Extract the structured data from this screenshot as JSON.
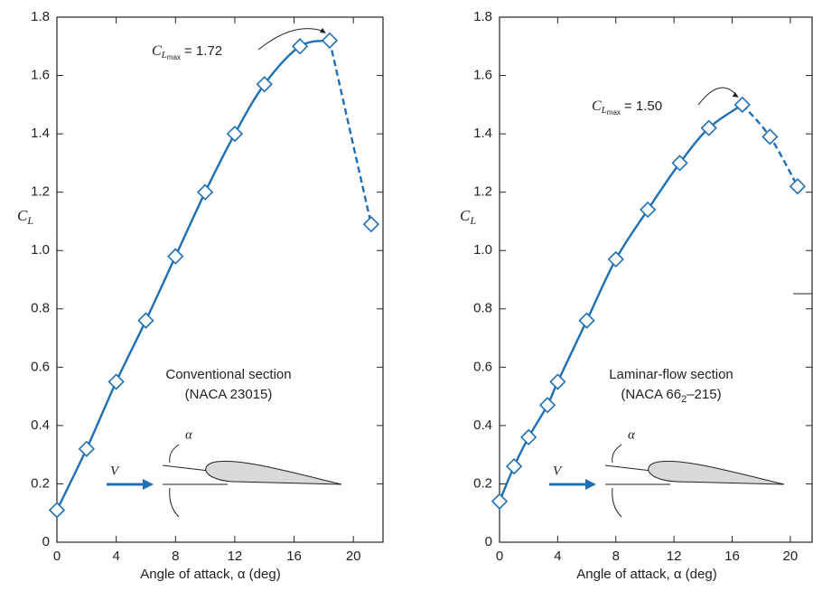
{
  "chart_data": [
    {
      "type": "line",
      "xlabel": "Angle of attack, α (deg)",
      "ylabel": {
        "symbol": "C",
        "sub": "L"
      },
      "annotation": {
        "symbol": "C",
        "sub": "L",
        "subsub": "max",
        "text": "= 1.72"
      },
      "section": [
        "Conventional section",
        "(NACA 23015)"
      ],
      "diagram": {
        "velocity": "V",
        "angle": "α"
      },
      "x": [
        0,
        2,
        4,
        6,
        8,
        10,
        12,
        14,
        16.4,
        18.4,
        21.2
      ],
      "series": [
        {
          "color": "#1f6fb4",
          "values": [
            0.11,
            0.32,
            0.55,
            0.76,
            0.98,
            1.2,
            1.4,
            1.57,
            1.7,
            1.72,
            1.09
          ]
        }
      ],
      "dashed_from": 9,
      "xlim": [
        0,
        22
      ],
      "ylim": [
        0,
        1.8
      ],
      "xticks": [
        0,
        4,
        8,
        12,
        16,
        20
      ],
      "yticks": [
        0,
        0.2,
        0.4,
        0.6,
        0.8,
        {
          "value": 1,
          "label": "1.0"
        },
        1.2,
        1.4,
        1.6,
        1.8
      ]
    },
    {
      "type": "line",
      "xlabel": "Angle of attack, α (deg)",
      "ylabel": {
        "symbol": "C",
        "sub": "L"
      },
      "annotation": {
        "symbol": "C",
        "sub": "L",
        "subsub": "max",
        "text": "= 1.50"
      },
      "section": [
        "Laminar-flow section",
        {
          "main": "(NACA 66",
          "sub": "2",
          "rest": "–215)"
        }
      ],
      "diagram": {
        "velocity": "V",
        "angle": "α"
      },
      "x": [
        0,
        1,
        2,
        3.3,
        4,
        6,
        8,
        10.2,
        12.4,
        14.4,
        16.7,
        18.6,
        20.5
      ],
      "series": [
        {
          "color": "#1f6fb4",
          "values": [
            0.14,
            0.26,
            0.36,
            0.47,
            0.55,
            0.76,
            0.97,
            1.14,
            1.3,
            1.42,
            1.5,
            1.39,
            1.22
          ]
        }
      ],
      "dashed_from": 10,
      "xlim": [
        0,
        21.5
      ],
      "ylim": [
        0,
        1.8
      ],
      "xticks": [
        0,
        4,
        8,
        12,
        16,
        20
      ],
      "yticks": [
        0,
        0.2,
        0.4,
        0.6,
        0.8,
        {
          "value": 1,
          "label": "1.0"
        },
        1.2,
        1.4,
        1.6,
        1.8
      ]
    }
  ]
}
